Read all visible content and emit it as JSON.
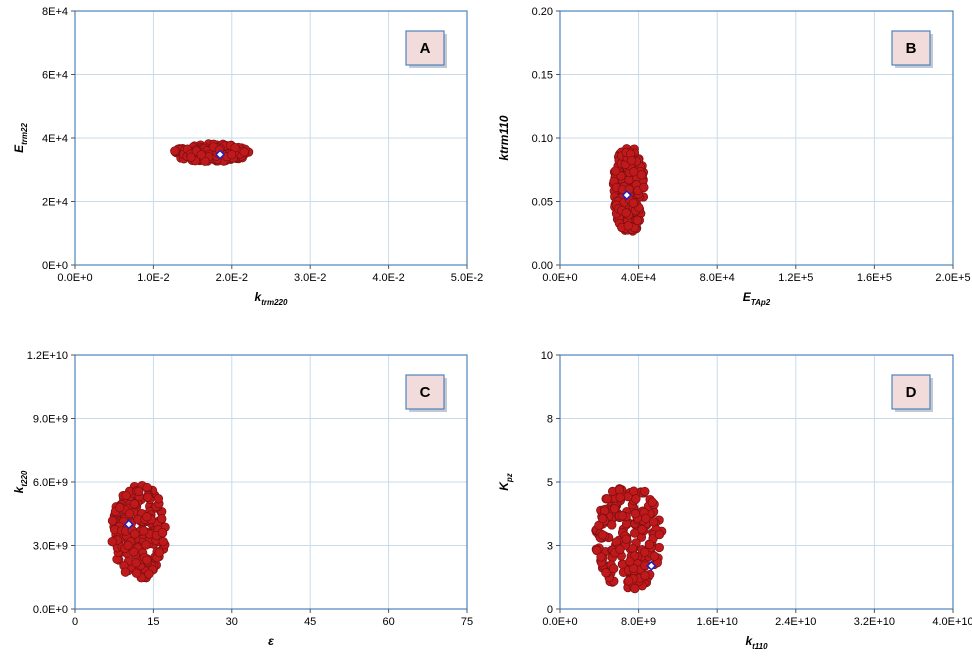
{
  "colors": {
    "point_fill": "#c0191c",
    "point_stroke": "#7a0f10",
    "marker_fill": "#ffffff",
    "marker_stroke": "#1f1fbf",
    "grid": "#c9dbe8",
    "plot_border": "#4e81bd",
    "label_box_fill": "#f2dcdb",
    "label_box_stroke": "#4e81bd"
  },
  "chart_data": [
    {
      "type": "scatter",
      "panel_label": "A",
      "xlabel_main": "k",
      "xlabel_sub": "trm220",
      "ylabel_main": "E",
      "ylabel_sub": "trm22",
      "xlim": [
        0,
        0.05
      ],
      "ylim": [
        0,
        80000
      ],
      "xticks": [
        "0.0E+0",
        "1.0E-2",
        "2.0E-2",
        "3.0E-2",
        "4.0E-2",
        "5.0E-2"
      ],
      "yticks": [
        "0E+0",
        "2E+4",
        "4E+4",
        "6E+4",
        "8E+4"
      ],
      "grid": true,
      "cluster": {
        "x_range": [
          0.0125,
          0.0222
        ],
        "y_range": [
          32500,
          38200
        ],
        "n": 160,
        "seed": 11
      },
      "best_point": {
        "x": 0.0185,
        "y": 34800
      }
    },
    {
      "type": "scatter",
      "panel_label": "B",
      "xlabel_main": "E",
      "xlabel_sub": "TAp2",
      "ylabel_main": "ktrm110",
      "ylabel_sub": "",
      "xlim": [
        0,
        200000
      ],
      "ylim": [
        0,
        0.2
      ],
      "xticks": [
        "0.0E+0",
        "4.0E+4",
        "8.0E+4",
        "1.2E+5",
        "1.6E+5",
        "2.0E+5"
      ],
      "yticks": [
        "0.00",
        "0.05",
        "0.10",
        "0.15",
        "0.20"
      ],
      "grid": true,
      "cluster": {
        "x_range": [
          27000,
          43500
        ],
        "y_range": [
          0.025,
          0.094
        ],
        "n": 200,
        "seed": 23
      },
      "best_point": {
        "x": 34000,
        "y": 0.055
      }
    },
    {
      "type": "scatter",
      "panel_label": "C",
      "xlabel_main": "ε",
      "xlabel_sub": "",
      "ylabel_main": "k",
      "ylabel_sub": "t220",
      "xlim": [
        0,
        75
      ],
      "ylim": [
        0,
        12000000000
      ],
      "xticks": [
        "0",
        "15",
        "30",
        "45",
        "60",
        "75"
      ],
      "yticks": [
        "0.0E+0",
        "3.0E+9",
        "6.0E+9",
        "9.0E+9",
        "1.2E+10"
      ],
      "grid": true,
      "cluster": {
        "x_range": [
          7,
          17.5
        ],
        "y_range": [
          1400000000,
          5900000000
        ],
        "n": 200,
        "seed": 37
      },
      "best_point": {
        "x": 10.3,
        "y": 4000000000
      }
    },
    {
      "type": "scatter",
      "panel_label": "D",
      "xlabel_main": "k",
      "xlabel_sub": "t110",
      "ylabel_main": "K",
      "ylabel_sub": "pz",
      "xlim": [
        0,
        40000000000
      ],
      "ylim": [
        0,
        10
      ],
      "xticks": [
        "0.0E+0",
        "8.0E+9",
        "1.6E+10",
        "2.4E+10",
        "3.2E+10",
        "4.0E+10"
      ],
      "yticks": [
        "0",
        "3",
        "5",
        "8",
        "10"
      ],
      "ytick_values": [
        0,
        2.5,
        5,
        7.5,
        10
      ],
      "grid": true,
      "cluster": {
        "x_range": [
          3600000000,
          10400000000
        ],
        "y_range": [
          0.7,
          4.9
        ],
        "n": 230,
        "seed": 53
      },
      "best_point": {
        "x": 9300000000,
        "y": 1.7
      }
    }
  ]
}
